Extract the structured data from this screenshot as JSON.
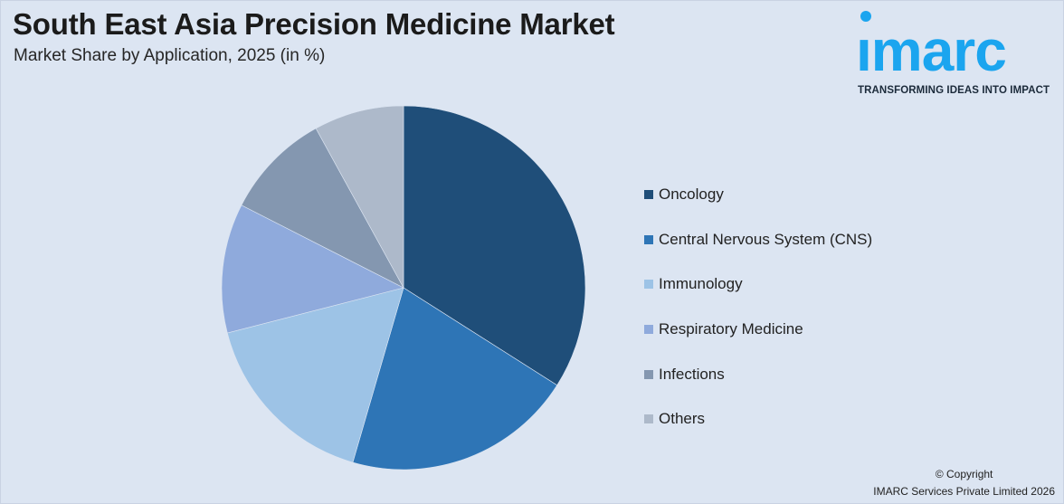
{
  "header": {
    "title": "South East Asia Precision Medicine Market",
    "subtitle": "Market Share by Application, 2025 (in %)"
  },
  "logo": {
    "word": "ımarc",
    "tagline": "TRANSFORMING IDEAS INTO IMPACT",
    "color": "#1ba5ef"
  },
  "chart_data": {
    "type": "pie",
    "title": "South East Asia Precision Medicine Market",
    "subtitle": "Market Share by Application, 2025 (in %)",
    "legend_position": "right",
    "start": "top, clockwise",
    "slices": [
      {
        "label": "Oncology",
        "value": 34.0,
        "color": "#1f4e79"
      },
      {
        "label": "Central Nervous System (CNS)",
        "value": 20.5,
        "color": "#2e75b6"
      },
      {
        "label": "Immunology",
        "value": 16.5,
        "color": "#9dc3e6"
      },
      {
        "label": "Respiratory Medicine",
        "value": 11.5,
        "color": "#8faadc"
      },
      {
        "label": "Infections",
        "value": 9.5,
        "color": "#8497b0"
      },
      {
        "label": "Others",
        "value": 8.0,
        "color": "#adb9ca"
      }
    ]
  },
  "footer": {
    "copyright_line1": "© Copyright",
    "copyright_line2": "IMARC Services Private Limited 2026"
  }
}
